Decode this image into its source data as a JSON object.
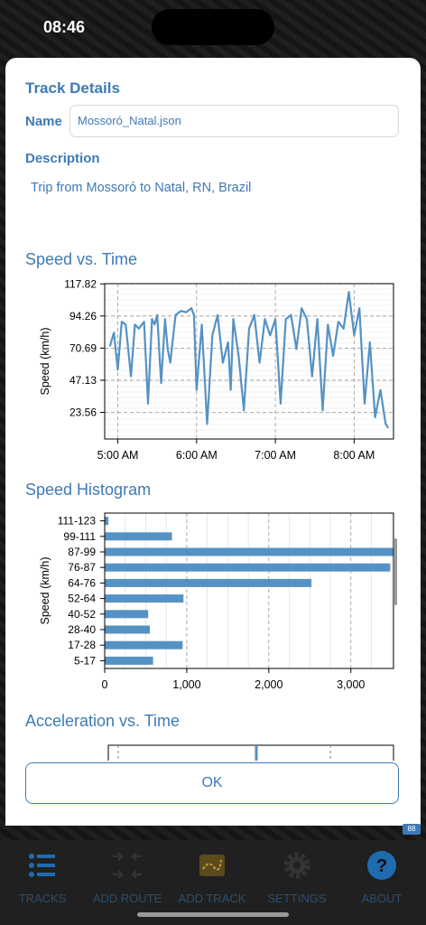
{
  "status_bar": {
    "time": "08:46"
  },
  "modal": {
    "title": "Track Details",
    "name_label": "Name",
    "name_value": "Mossoró_Natal.json",
    "description_label": "Description",
    "description_text": "Trip from Mossoró to Natal, RN, Brazil",
    "ok_label": "OK"
  },
  "chart_data": [
    {
      "type": "line",
      "title": "Speed vs. Time",
      "ylabel": "Speed (km/h)",
      "xlabel": "",
      "ylim": [
        4,
        118
      ],
      "yticks": [
        "23.56",
        "47.13",
        "70.69",
        "94.26",
        "117.82"
      ],
      "xticks": [
        "5:00 AM",
        "6:00 AM",
        "7:00 AM",
        "8:00 AM"
      ],
      "x_unit": "minutes after 4:00 AM",
      "x": [
        54,
        57,
        60,
        63,
        66,
        70,
        73,
        76,
        80,
        83,
        86,
        88,
        90,
        93,
        96,
        98,
        100,
        104,
        108,
        112,
        116,
        118,
        120,
        124,
        128,
        132,
        136,
        140,
        144,
        146,
        148,
        152,
        156,
        160,
        164,
        168,
        172,
        176,
        180,
        184,
        188,
        192,
        196,
        200,
        204,
        208,
        212,
        216,
        220,
        224,
        228,
        232,
        236,
        240,
        244,
        248,
        252,
        256,
        260,
        264,
        266
      ],
      "values": [
        72,
        82,
        55,
        90,
        88,
        50,
        88,
        85,
        90,
        30,
        92,
        88,
        95,
        45,
        92,
        70,
        60,
        95,
        98,
        97,
        100,
        95,
        40,
        88,
        15,
        80,
        95,
        60,
        75,
        40,
        92,
        65,
        25,
        85,
        95,
        60,
        92,
        80,
        92,
        30,
        92,
        95,
        70,
        100,
        92,
        50,
        92,
        25,
        88,
        65,
        90,
        85,
        112,
        80,
        100,
        30,
        75,
        20,
        40,
        15,
        12
      ],
      "grid": true
    },
    {
      "type": "bar",
      "orientation": "horizontal",
      "title": "Speed Histogram",
      "ylabel": "Speed (km/h)",
      "categories": [
        "111-123",
        "99-111",
        "87-99",
        "76-87",
        "64-76",
        "52-64",
        "40-52",
        "28-40",
        "17-28",
        "5-17"
      ],
      "values": [
        45,
        820,
        3520,
        3480,
        2520,
        960,
        530,
        550,
        950,
        590
      ],
      "xticks": [
        "0",
        "1,000",
        "2,000",
        "3,000"
      ],
      "xlim": [
        0,
        3520
      ],
      "grid": true
    },
    {
      "type": "line",
      "title": "Acceleration vs. Time",
      "partially_visible": true
    }
  ],
  "tab_bar": {
    "items": [
      {
        "label": "TRACKS",
        "icon": "list-icon"
      },
      {
        "label": "ADD ROUTE",
        "icon": "route-arrows-icon"
      },
      {
        "label": "ADD TRACK",
        "icon": "map-track-icon"
      },
      {
        "label": "SETTINGS",
        "icon": "gear-icon"
      },
      {
        "label": "ABOUT",
        "icon": "question-icon"
      }
    ]
  },
  "colors": {
    "accent": "#3e7ab5",
    "series": "#5592c4"
  }
}
